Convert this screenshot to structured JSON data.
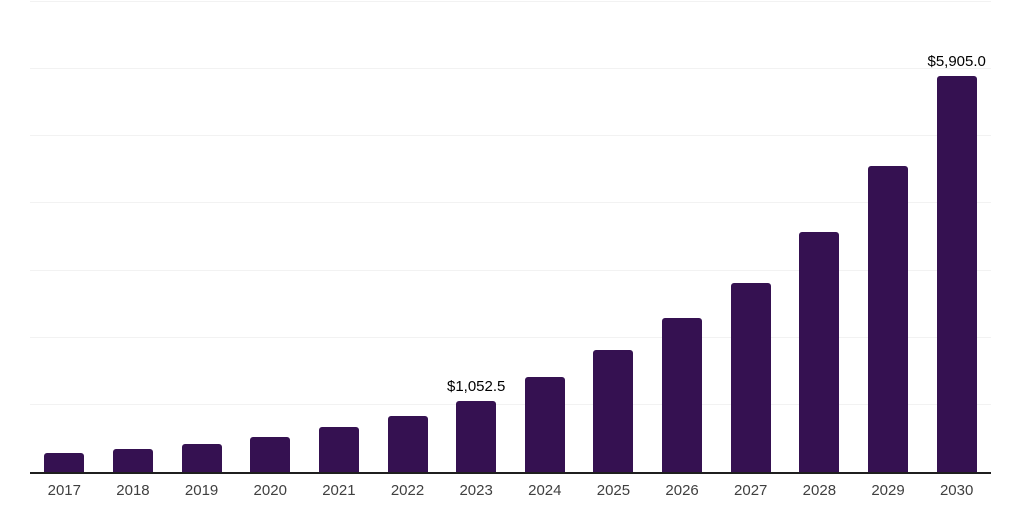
{
  "chart_data": {
    "type": "bar",
    "title": "",
    "xlabel": "",
    "ylabel": "",
    "categories": [
      "2017",
      "2018",
      "2019",
      "2020",
      "2021",
      "2022",
      "2023",
      "2024",
      "2025",
      "2026",
      "2027",
      "2028",
      "2029",
      "2030"
    ],
    "values": [
      280,
      340,
      415,
      520,
      670,
      830,
      1052.5,
      1410,
      1810,
      2290,
      2820,
      3580,
      4560,
      5905
    ],
    "data_labels": [
      null,
      null,
      null,
      null,
      null,
      null,
      "$1,052.5",
      null,
      null,
      null,
      null,
      null,
      null,
      "$5,905.0"
    ],
    "ylim": [
      0,
      7000
    ],
    "gridline_interval": 1000,
    "grid": true,
    "y_tick_labels_shown": false,
    "legend_position": "none",
    "colors": {
      "bar": "#351151",
      "axis_line": "#1f1f1f",
      "gridline": "#f2f2f2",
      "data_label": "#000000",
      "tick_label": "#404040",
      "background": "#ffffff"
    }
  }
}
